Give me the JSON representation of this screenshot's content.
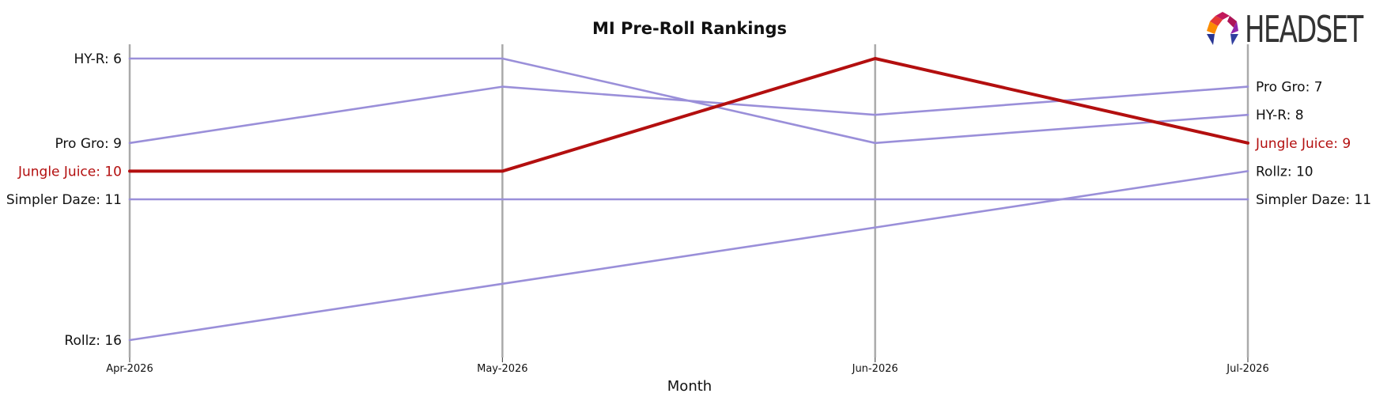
{
  "logo": {
    "text": "HEADSET"
  },
  "chart_data": {
    "type": "line",
    "title": "MI Pre-Roll Rankings",
    "xlabel": "Month",
    "ylabel": "",
    "x": [
      "Apr-2026",
      "May-2026",
      "Jun-2026",
      "Jul-2026"
    ],
    "y_inverted": true,
    "ylim": [
      17,
      6
    ],
    "grid": false,
    "highlight_series": "Jungle Juice",
    "colors": {
      "highlight": "#b30f0f",
      "other": "#9a8fd9",
      "axis": "#aaaaaa",
      "text": "#111111"
    },
    "series": [
      {
        "name": "HY-R",
        "values": [
          6,
          6,
          9,
          8
        ],
        "highlight": false
      },
      {
        "name": "Pro Gro",
        "values": [
          9,
          7,
          8,
          7
        ],
        "highlight": false
      },
      {
        "name": "Jungle Juice",
        "values": [
          10,
          10,
          6,
          9
        ],
        "highlight": true
      },
      {
        "name": "Simpler Daze",
        "values": [
          11,
          11,
          11,
          11
        ],
        "highlight": false
      },
      {
        "name": "Rollz",
        "values": [
          16,
          14,
          12,
          10
        ],
        "highlight": false
      }
    ],
    "start_labels": [
      {
        "text": "HY-R: 6",
        "series": "HY-R"
      },
      {
        "text": "Pro Gro: 9",
        "series": "Pro Gro"
      },
      {
        "text": "Jungle Juice: 10",
        "series": "Jungle Juice"
      },
      {
        "text": "Simpler Daze: 11",
        "series": "Simpler Daze"
      },
      {
        "text": "Rollz: 16",
        "series": "Rollz"
      }
    ],
    "end_labels": [
      {
        "text": "Pro Gro: 7",
        "series": "Pro Gro"
      },
      {
        "text": "HY-R: 8",
        "series": "HY-R"
      },
      {
        "text": "Jungle Juice: 9",
        "series": "Jungle Juice"
      },
      {
        "text": "Rollz: 10",
        "series": "Rollz"
      },
      {
        "text": "Simpler Daze: 11",
        "series": "Simpler Daze"
      }
    ]
  }
}
